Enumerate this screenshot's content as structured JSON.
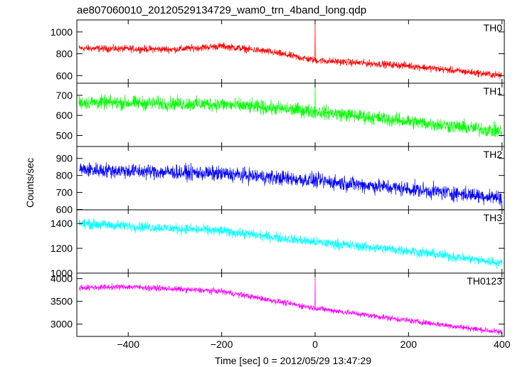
{
  "chart_data": {
    "type": "line",
    "title": "ae807060010_20120529134729_wam0_trn_4band_long.qdp",
    "xlabel": "Time [sec] 0 = 2012/05/29 13:47:29",
    "ylabel": "Counts/sec",
    "xlim": [
      -510,
      405
    ],
    "x_ticks": [
      -400,
      -200,
      0,
      200,
      400
    ],
    "x_tick_labels": [
      "−400",
      "−200",
      "0",
      "200",
      "400"
    ],
    "x_range": [
      -505,
      400
    ],
    "panels": [
      {
        "name": "TH0",
        "color": "#ff0000",
        "ylim": [
          530,
          1110
        ],
        "y_ticks": [
          600,
          800,
          1000
        ],
        "y_tick_labels": [
          "600",
          "800",
          "1000"
        ],
        "trend": [
          [
            -505,
            850
          ],
          [
            -300,
            840
          ],
          [
            -200,
            870
          ],
          [
            -100,
            820
          ],
          [
            0,
            740
          ],
          [
            200,
            690
          ],
          [
            400,
            600
          ]
        ],
        "noise": 28,
        "spike": {
          "x": 0,
          "y": 1100
        }
      },
      {
        "name": "TH1",
        "color": "#00ff00",
        "ylim": [
          445,
          760
        ],
        "y_ticks": [
          500,
          600,
          700
        ],
        "y_tick_labels": [
          "500",
          "600",
          "700"
        ],
        "trend": [
          [
            -505,
            665
          ],
          [
            -200,
            655
          ],
          [
            0,
            620
          ],
          [
            200,
            570
          ],
          [
            400,
            520
          ]
        ],
        "noise": 30,
        "spike": {
          "x": 0,
          "y": 750
        }
      },
      {
        "name": "TH2",
        "color": "#0000ff",
        "ylim": [
          598,
          970
        ],
        "y_ticks": [
          600,
          700,
          800,
          900
        ],
        "y_tick_labels": [
          "600",
          "700",
          "800",
          "900"
        ],
        "trend": [
          [
            -505,
            835
          ],
          [
            -200,
            810
          ],
          [
            0,
            770
          ],
          [
            200,
            720
          ],
          [
            400,
            670
          ]
        ],
        "noise": 38,
        "spike": null
      },
      {
        "name": "TH3",
        "color": "#00ffff",
        "ylim": [
          1000,
          1510
        ],
        "y_ticks": [
          1000,
          1200,
          1400
        ],
        "y_tick_labels": [
          "1000",
          "1200",
          "1400"
        ],
        "trend": [
          [
            -505,
            1400
          ],
          [
            -200,
            1340
          ],
          [
            0,
            1250
          ],
          [
            200,
            1180
          ],
          [
            400,
            1080
          ]
        ],
        "noise": 35,
        "spike": null
      },
      {
        "name": "TH0123",
        "color": "#ff00ff",
        "ylim": [
          2730,
          4120
        ],
        "y_ticks": [
          3000,
          3500,
          4000
        ],
        "y_tick_labels": [
          "3000",
          "3500",
          "4000"
        ],
        "trend": [
          [
            -505,
            3800
          ],
          [
            -400,
            3820
          ],
          [
            -200,
            3720
          ],
          [
            0,
            3350
          ],
          [
            200,
            3080
          ],
          [
            400,
            2820
          ]
        ],
        "noise": 55,
        "spike": {
          "x": 0,
          "y": 4110
        }
      }
    ],
    "grid": false,
    "legend": "panel labels top-right"
  }
}
